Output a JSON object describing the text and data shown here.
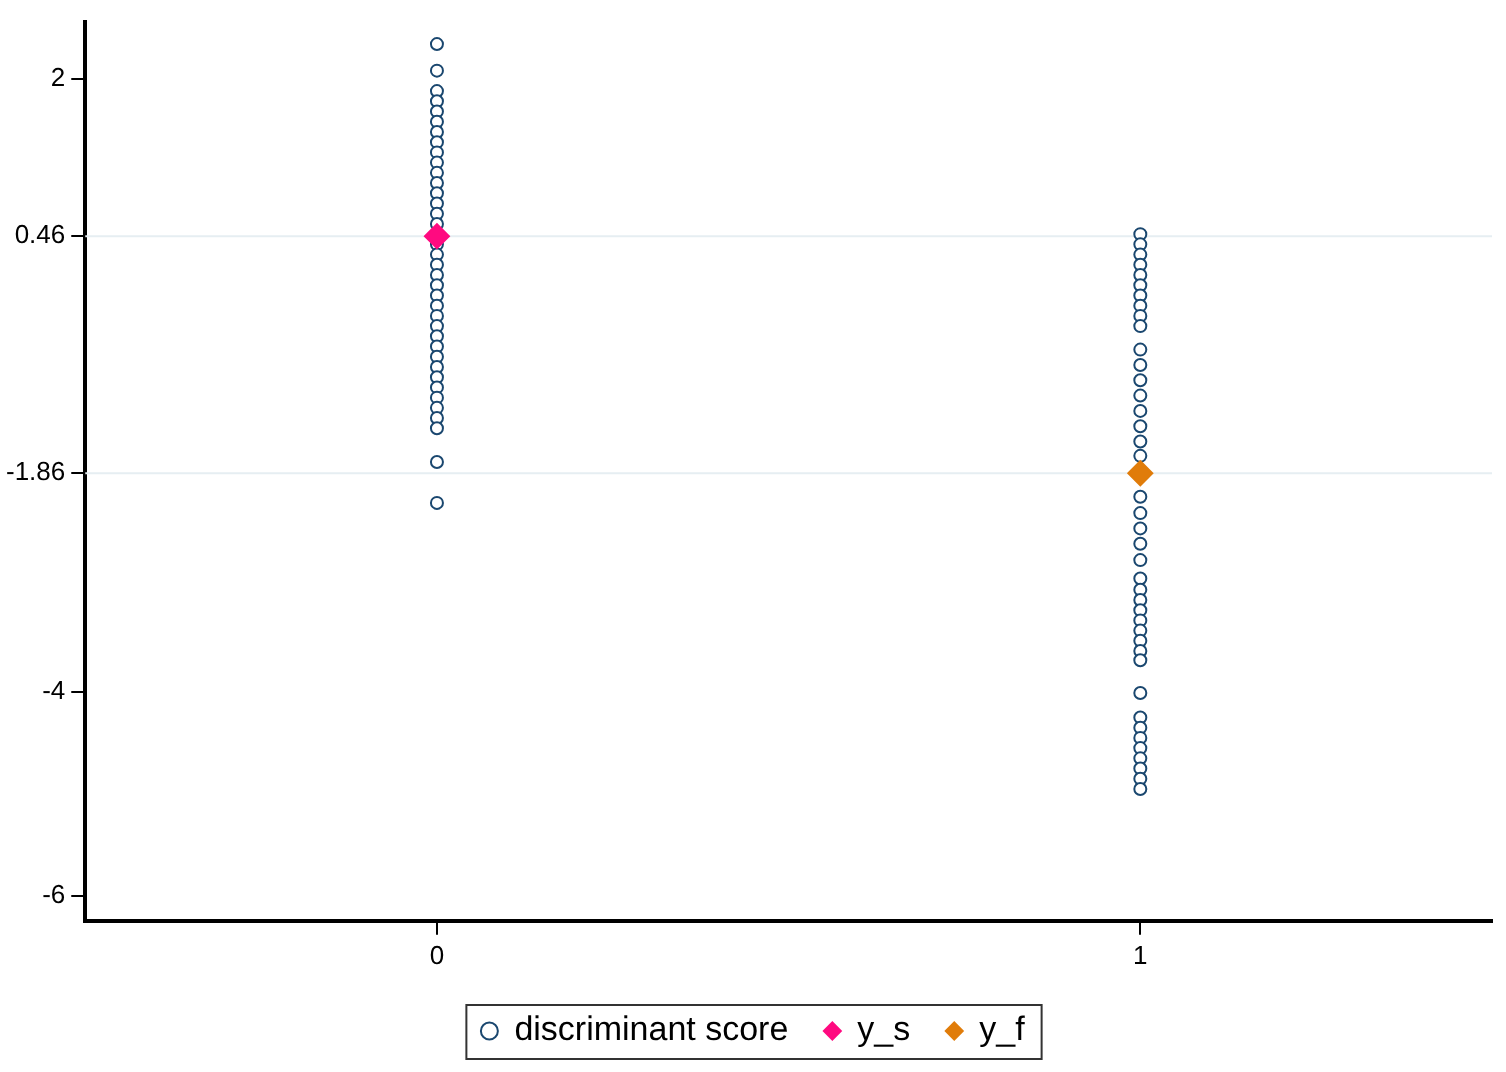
{
  "chart_data": {
    "type": "scatter",
    "categories": [
      "0",
      "1"
    ],
    "ylim": [
      -6.24,
      2.56
    ],
    "yticks": [
      2,
      0.46,
      -1.86,
      -4,
      -6
    ],
    "grid": false,
    "legend": "bottom",
    "ref_lines": [
      {
        "axis": "y",
        "value": 0.46,
        "color": "#e6eef2"
      },
      {
        "axis": "y",
        "value": -1.86,
        "color": "#e6eef2"
      }
    ],
    "series": [
      {
        "name": "discriminant score",
        "color": "#1a476f",
        "marker": "circle",
        "x": [
          "0",
          "0",
          "0",
          "0",
          "0",
          "0",
          "0",
          "0",
          "0",
          "0",
          "0",
          "0",
          "0",
          "0",
          "0",
          "0",
          "0",
          "0",
          "0",
          "0",
          "0",
          "0",
          "0",
          "0",
          "0",
          "0",
          "0",
          "0",
          "0",
          "0",
          "0",
          "0",
          "0",
          "0",
          "0",
          "0",
          "0",
          "1",
          "1",
          "1",
          "1",
          "1",
          "1",
          "1",
          "1",
          "1",
          "1",
          "1",
          "1",
          "1",
          "1",
          "1",
          "1",
          "1",
          "1",
          "1",
          "1",
          "1",
          "1",
          "1",
          "1",
          "1",
          "1",
          "1",
          "1",
          "1",
          "1",
          "1",
          "1",
          "1",
          "1",
          "1",
          "1",
          "1",
          "1",
          "1",
          "1",
          "1"
        ],
        "values": [
          2.34,
          2.08,
          1.88,
          1.78,
          1.68,
          1.58,
          1.48,
          1.38,
          1.28,
          1.18,
          1.08,
          0.98,
          0.88,
          0.78,
          0.68,
          0.58,
          0.38,
          0.28,
          0.18,
          0.08,
          -0.02,
          -0.12,
          -0.22,
          -0.32,
          -0.42,
          -0.52,
          -0.62,
          -0.72,
          -0.82,
          -0.92,
          -1.02,
          -1.12,
          -1.22,
          -1.32,
          -1.42,
          -1.75,
          -2.15,
          0.48,
          0.38,
          0.28,
          0.18,
          0.08,
          -0.02,
          -0.12,
          -0.22,
          -0.32,
          -0.42,
          -0.65,
          -0.8,
          -0.95,
          -1.1,
          -1.25,
          -1.4,
          -1.55,
          -1.69,
          -2.09,
          -2.25,
          -2.4,
          -2.55,
          -2.71,
          -2.89,
          -3.0,
          -3.1,
          -3.2,
          -3.3,
          -3.4,
          -3.5,
          -3.6,
          -3.69,
          -4.01,
          -4.25,
          -4.35,
          -4.45,
          -4.55,
          -4.65,
          -4.75,
          -4.85,
          -4.95
        ]
      },
      {
        "name": "y_s",
        "color": "#ff0a80",
        "marker": "diamond",
        "x": [
          "0"
        ],
        "values": [
          0.46
        ]
      },
      {
        "name": "y_f",
        "color": "#e07c0a",
        "marker": "diamond",
        "x": [
          "1"
        ],
        "values": [
          -1.86
        ]
      }
    ]
  }
}
